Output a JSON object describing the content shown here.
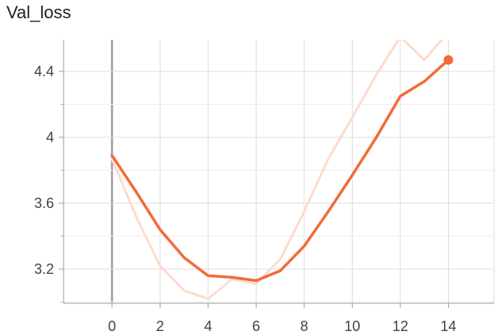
{
  "chart_data": {
    "type": "line",
    "title": "Val_loss",
    "xlabel": "",
    "ylabel": "",
    "xlim": [
      -2,
      15.2
    ],
    "ylim": [
      3.0,
      4.68
    ],
    "x_ticks": [
      0,
      2,
      4,
      6,
      8,
      10,
      12,
      14
    ],
    "y_ticks": [
      3.2,
      3.6,
      4,
      4.4
    ],
    "x_tick_labels": [
      "0",
      "2",
      "4",
      "6",
      "8",
      "10",
      "12",
      "14"
    ],
    "y_tick_labels": [
      "3.2",
      "3.6",
      "4",
      "4.4"
    ],
    "grid": true,
    "series": [
      {
        "role": "raw",
        "color": "#fcdccd",
        "x": [
          0,
          1,
          2,
          3,
          4,
          5,
          6,
          7,
          8,
          9,
          10,
          11,
          12,
          13,
          14
        ],
        "values": [
          3.87,
          3.52,
          3.22,
          3.07,
          3.02,
          3.14,
          3.11,
          3.26,
          3.55,
          3.87,
          4.12,
          4.38,
          4.61,
          4.47,
          4.64
        ]
      },
      {
        "role": "smoothed",
        "color": "#f26b38",
        "x": [
          0,
          1,
          2,
          3,
          4,
          5,
          6,
          7,
          8,
          9,
          10,
          11,
          12,
          13,
          14
        ],
        "values": [
          3.89,
          3.67,
          3.44,
          3.27,
          3.16,
          3.15,
          3.13,
          3.19,
          3.34,
          3.55,
          3.77,
          4.0,
          4.25,
          4.34,
          4.47
        ]
      }
    ]
  }
}
